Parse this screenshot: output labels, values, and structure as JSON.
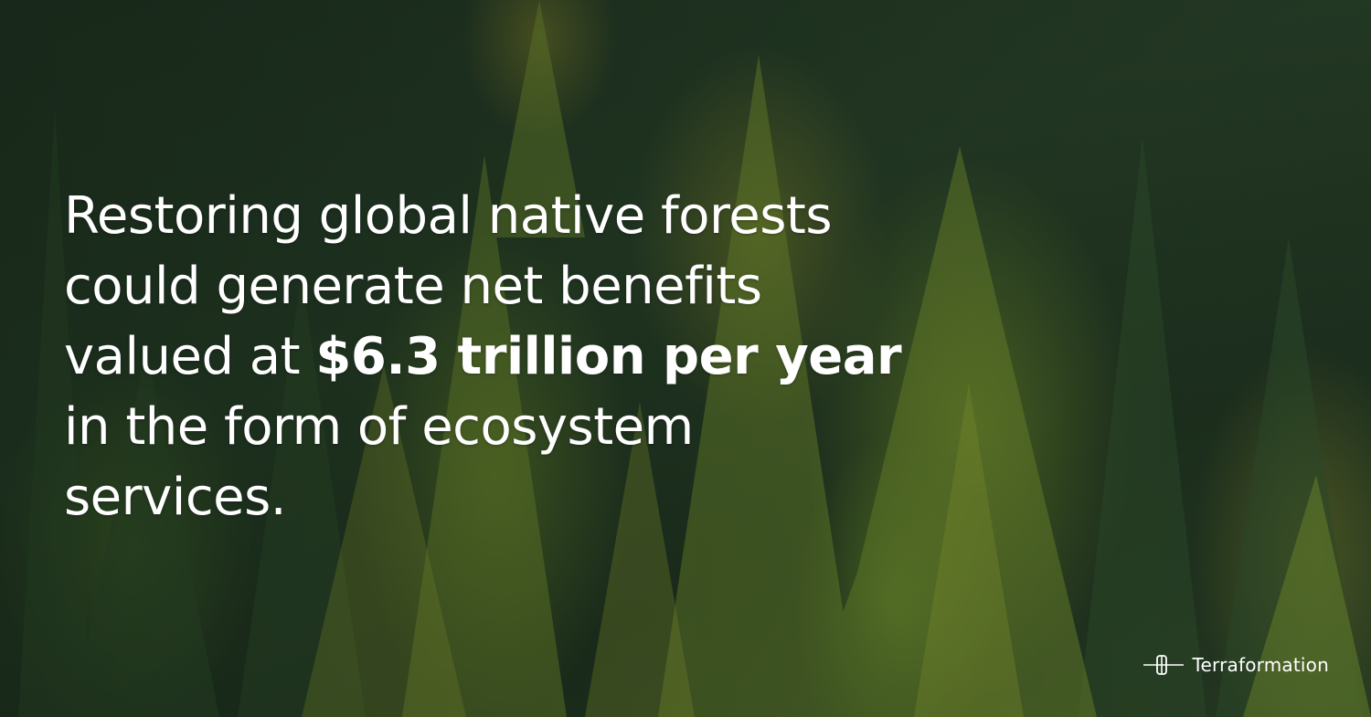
{
  "headline": {
    "line1": "Restoring global native forests",
    "line2": "could generate net benefits",
    "line3_prefix": "valued at ",
    "line3_emphasis": "$6.3 trillion per year",
    "line4": "in the form of ecosystem",
    "line5": "services."
  },
  "brand": {
    "name": "Terraformation",
    "icon": "terraformation-logo-icon"
  },
  "colors": {
    "text": "#ffffff",
    "forest_dark": "#1f3222",
    "forest_light": "#7e9a2a"
  }
}
